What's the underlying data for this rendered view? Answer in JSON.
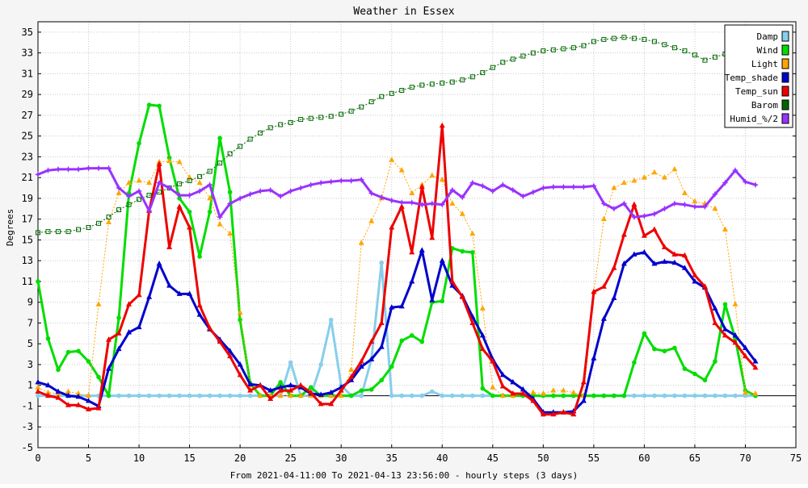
{
  "chart_data": {
    "type": "line",
    "title": "Weather in Essex",
    "ylabel": "Degrees",
    "xlabel": "From 2021-04-11:00 To 2021-04-13 23:56:00 - hourly steps (3 days)",
    "xlim": [
      0,
      75
    ],
    "ylim": [
      -5,
      36
    ],
    "x_ticks": [
      0,
      5,
      10,
      15,
      20,
      25,
      30,
      35,
      40,
      45,
      50,
      55,
      60,
      65,
      70,
      75
    ],
    "y_ticks": [
      -5,
      -3,
      -1,
      1,
      3,
      5,
      7,
      9,
      11,
      13,
      15,
      17,
      19,
      21,
      23,
      25,
      27,
      29,
      31,
      33,
      35
    ],
    "grid": true,
    "legend_position": "top-right",
    "x": [
      0,
      1,
      2,
      3,
      4,
      5,
      6,
      7,
      8,
      9,
      10,
      11,
      12,
      13,
      14,
      15,
      16,
      17,
      18,
      19,
      20,
      21,
      22,
      23,
      24,
      25,
      26,
      27,
      28,
      29,
      30,
      31,
      32,
      33,
      34,
      35,
      36,
      37,
      38,
      39,
      40,
      41,
      42,
      43,
      44,
      45,
      46,
      47,
      48,
      49,
      50,
      51,
      52,
      53,
      54,
      55,
      56,
      57,
      58,
      59,
      60,
      61,
      62,
      63,
      64,
      65,
      66,
      67,
      68,
      69,
      70,
      71
    ],
    "series": [
      {
        "name": "Damp",
        "color": "#87ceeb",
        "marker": "circle",
        "width": 3,
        "values": [
          0,
          0,
          0,
          0,
          0,
          0,
          0,
          0,
          0,
          0,
          0,
          0,
          0,
          0,
          0,
          0,
          0,
          0,
          0,
          0,
          0,
          0,
          0,
          0,
          0,
          3.2,
          0,
          0,
          3.0,
          7.3,
          1.0,
          0,
          0,
          3.5,
          12.8,
          0,
          0,
          0,
          0,
          0.4,
          0,
          0,
          0,
          0,
          0,
          0,
          0,
          0,
          0,
          0,
          0,
          0,
          0,
          0,
          0,
          0,
          0,
          0,
          0,
          0,
          0,
          0,
          0,
          0,
          0,
          0,
          0,
          0,
          0,
          0,
          0,
          0
        ]
      },
      {
        "name": "Wind",
        "color": "#00dd00",
        "marker": "circle",
        "width": 3,
        "values": [
          11.0,
          5.5,
          2.5,
          4.2,
          4.3,
          3.3,
          1.8,
          0,
          7.5,
          19.5,
          24.3,
          28.0,
          27.9,
          22.9,
          19.0,
          17.7,
          13.4,
          17.7,
          24.8,
          19.6,
          7.3,
          1.2,
          0,
          0,
          1.3,
          0,
          0,
          0.8,
          0,
          0,
          0,
          0,
          0.5,
          0.6,
          1.5,
          2.8,
          5.3,
          5.8,
          5.2,
          9.0,
          9.1,
          14.2,
          13.9,
          13.8,
          0.7,
          0,
          0,
          0,
          0,
          0,
          0,
          0,
          0,
          0,
          0,
          0,
          0,
          0,
          0,
          3.2,
          6.0,
          4.5,
          4.3,
          4.6,
          2.6,
          2.1,
          1.5,
          3.3,
          8.8,
          5.5,
          0.5,
          0
        ]
      },
      {
        "name": "Light",
        "color": "#ffa500",
        "marker": "triangle",
        "width": 1,
        "dash": "2,2",
        "values": [
          0.8,
          0.3,
          0.2,
          0.4,
          0.2,
          0,
          8.8,
          16.7,
          19.5,
          20.5,
          20.7,
          20.5,
          22.5,
          22.6,
          22.5,
          21.0,
          20.5,
          19.0,
          16.5,
          15.6,
          8.0,
          1.0,
          0,
          0,
          0,
          0,
          0,
          0,
          0,
          0,
          0,
          2.5,
          14.7,
          16.8,
          19.0,
          22.7,
          21.7,
          19.5,
          20.3,
          21.2,
          20.8,
          18.5,
          17.5,
          15.6,
          8.4,
          0.8,
          0,
          0,
          0.2,
          0.3,
          0.2,
          0.5,
          0.5,
          0.3,
          0,
          10.0,
          17.0,
          20.0,
          20.5,
          20.7,
          21.0,
          21.5,
          21.0,
          21.8,
          19.5,
          18.7,
          18.5,
          18.0,
          16.0,
          8.8,
          0.3,
          0.2
        ]
      },
      {
        "name": "Temp_shade",
        "color": "#0000cc",
        "marker": "triangle",
        "width": 3,
        "values": [
          1.3,
          1.0,
          0.4,
          0,
          -0.1,
          -0.5,
          -1.0,
          2.6,
          4.5,
          6.1,
          6.6,
          9.5,
          12.7,
          10.6,
          9.8,
          9.8,
          7.8,
          6.4,
          5.4,
          4.3,
          3.0,
          1.1,
          1.0,
          0.5,
          0.8,
          1.0,
          0.8,
          0.2,
          0.1,
          0.3,
          0.8,
          1.5,
          2.8,
          3.5,
          4.7,
          8.5,
          8.6,
          11.0,
          14.0,
          9.2,
          13.0,
          10.6,
          9.6,
          7.6,
          5.8,
          3.5,
          2.0,
          1.3,
          0.6,
          -0.3,
          -1.6,
          -1.6,
          -1.6,
          -1.5,
          -0.5,
          3.6,
          7.4,
          9.4,
          12.7,
          13.6,
          13.8,
          12.7,
          12.9,
          12.8,
          12.3,
          11.0,
          10.4,
          8.4,
          6.4,
          5.8,
          4.6,
          3.3
        ]
      },
      {
        "name": "Temp_sun",
        "color": "#ee0000",
        "marker": "triangle",
        "width": 3,
        "values": [
          0.4,
          0,
          -0.2,
          -0.9,
          -0.9,
          -1.3,
          -1.2,
          5.4,
          6.0,
          8.8,
          9.7,
          17.8,
          22.3,
          14.3,
          18.2,
          16.2,
          8.7,
          6.5,
          5.2,
          3.8,
          2.0,
          0.5,
          1.0,
          -0.3,
          0.5,
          0.5,
          1.0,
          0.3,
          -0.8,
          -0.8,
          0.5,
          1.8,
          3.3,
          5.2,
          7.0,
          16.2,
          18.2,
          13.8,
          20.1,
          15.2,
          26.0,
          11.0,
          9.5,
          7.0,
          4.5,
          3.3,
          0.9,
          0.2,
          0.2,
          -0.5,
          -1.8,
          -1.8,
          -1.6,
          -1.8,
          1.3,
          10.0,
          10.5,
          12.3,
          15.5,
          18.4,
          15.4,
          16.0,
          14.3,
          13.6,
          13.5,
          11.6,
          10.5,
          7.0,
          5.8,
          5.1,
          3.8,
          2.7
        ]
      },
      {
        "name": "Barom",
        "color": "#006600",
        "marker": "square",
        "width": 1,
        "dash": "2,2",
        "values": [
          15.7,
          15.8,
          15.8,
          15.8,
          16.0,
          16.2,
          16.6,
          17.2,
          17.9,
          18.4,
          18.9,
          19.3,
          19.6,
          20.0,
          20.4,
          20.7,
          21.1,
          21.6,
          22.4,
          23.3,
          24.0,
          24.7,
          25.3,
          25.8,
          26.1,
          26.3,
          26.6,
          26.7,
          26.8,
          26.9,
          27.1,
          27.4,
          27.8,
          28.3,
          28.8,
          29.1,
          29.4,
          29.7,
          29.9,
          30.0,
          30.1,
          30.2,
          30.4,
          30.7,
          31.1,
          31.6,
          32.1,
          32.4,
          32.7,
          33.0,
          33.2,
          33.3,
          33.4,
          33.5,
          33.7,
          34.1,
          34.3,
          34.4,
          34.5,
          34.4,
          34.3,
          34.1,
          33.8,
          33.5,
          33.2,
          32.8,
          32.3,
          32.6,
          32.9,
          33.2,
          33.3,
          33.4
        ]
      },
      {
        "name": "Humid_%/2",
        "color": "#9933ff",
        "marker": "star",
        "width": 3,
        "values": [
          21.3,
          21.7,
          21.8,
          21.8,
          21.8,
          21.9,
          21.9,
          21.9,
          20.0,
          19.2,
          19.7,
          17.8,
          20.5,
          20.0,
          19.3,
          19.3,
          19.7,
          20.3,
          17.2,
          18.5,
          19.0,
          19.4,
          19.7,
          19.8,
          19.2,
          19.7,
          20.0,
          20.3,
          20.5,
          20.6,
          20.7,
          20.7,
          20.8,
          19.5,
          19.1,
          18.8,
          18.6,
          18.6,
          18.4,
          18.5,
          18.4,
          19.8,
          19.1,
          20.5,
          20.2,
          19.7,
          20.3,
          19.8,
          19.2,
          19.6,
          20.0,
          20.1,
          20.1,
          20.1,
          20.1,
          20.2,
          18.5,
          18.0,
          18.5,
          17.2,
          17.3,
          17.5,
          18.0,
          18.5,
          18.4,
          18.2,
          18.2,
          19.4,
          20.5,
          21.7,
          20.6,
          20.3
        ]
      }
    ]
  }
}
